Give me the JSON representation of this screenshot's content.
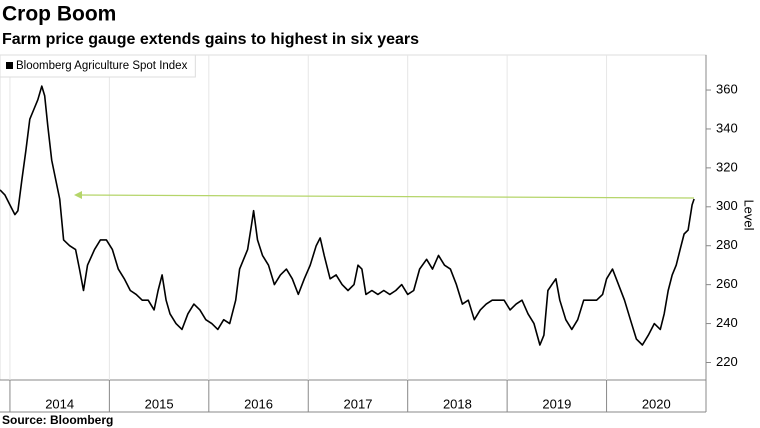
{
  "chart_data": {
    "type": "line",
    "title": "Crop Boom",
    "subtitle": "Farm price gauge extends gains to highest in six years",
    "y_label": "Level",
    "source": "Source: Bloomberg",
    "x": [
      2013.9,
      2013.95,
      2014.0,
      2014.05,
      2014.08,
      2014.12,
      2014.16,
      2014.2,
      2014.24,
      2014.28,
      2014.32,
      2014.35,
      2014.38,
      2014.42,
      2014.46,
      2014.5,
      2014.54,
      2014.6,
      2014.66,
      2014.7,
      2014.74,
      2014.78,
      2014.85,
      2014.91,
      2014.97,
      2015.03,
      2015.09,
      2015.15,
      2015.21,
      2015.27,
      2015.33,
      2015.39,
      2015.45,
      2015.49,
      2015.53,
      2015.57,
      2015.61,
      2015.67,
      2015.73,
      2015.79,
      2015.85,
      2015.91,
      2015.97,
      2016.03,
      2016.09,
      2016.15,
      2016.21,
      2016.27,
      2016.31,
      2016.35,
      2016.39,
      2016.43,
      2016.45,
      2016.49,
      2016.54,
      2016.6,
      2016.66,
      2016.72,
      2016.78,
      2016.84,
      2016.9,
      2016.96,
      2017.02,
      2017.08,
      2017.12,
      2017.16,
      2017.22,
      2017.28,
      2017.34,
      2017.4,
      2017.46,
      2017.5,
      2017.54,
      2017.58,
      2017.64,
      2017.7,
      2017.76,
      2017.82,
      2017.88,
      2017.94,
      2018.0,
      2018.06,
      2018.12,
      2018.19,
      2018.25,
      2018.31,
      2018.37,
      2018.43,
      2018.49,
      2018.55,
      2018.61,
      2018.67,
      2018.73,
      2018.79,
      2018.85,
      2018.91,
      2018.97,
      2019.03,
      2019.09,
      2019.15,
      2019.21,
      2019.27,
      2019.33,
      2019.37,
      2019.41,
      2019.45,
      2019.49,
      2019.53,
      2019.59,
      2019.65,
      2019.71,
      2019.77,
      2019.83,
      2019.9,
      2019.96,
      2020.0,
      2020.06,
      2020.12,
      2020.18,
      2020.24,
      2020.3,
      2020.36,
      2020.42,
      2020.48,
      2020.54,
      2020.58,
      2020.62,
      2020.66,
      2020.7,
      2020.74,
      2020.78,
      2020.82,
      2020.86,
      2020.88
    ],
    "series": [
      {
        "name": "Bloomberg Agriculture Spot Index",
        "color": "#000000",
        "values": [
          308.7,
          306,
          301,
          296,
          298,
          314,
          329,
          345,
          350,
          355,
          362,
          357,
          342,
          324,
          314,
          304,
          283,
          280,
          278,
          268,
          257,
          270,
          278,
          283,
          283,
          278,
          268,
          263,
          257,
          255,
          252,
          252,
          247,
          257,
          265,
          252,
          245,
          240,
          237,
          245,
          250,
          247,
          242,
          240,
          237,
          242,
          240,
          252,
          268,
          273,
          278,
          291,
          298,
          283,
          275,
          270,
          260,
          265,
          268,
          263,
          255,
          263,
          270,
          280,
          284,
          275,
          263,
          265,
          260,
          257,
          260,
          270,
          268,
          255,
          257,
          255,
          257,
          255,
          257,
          260,
          255,
          257,
          268,
          273,
          268,
          275,
          270,
          268,
          260,
          250,
          252,
          242,
          247,
          250,
          252,
          252,
          252,
          247,
          250,
          252,
          245,
          240,
          229,
          234,
          257,
          260,
          263,
          252,
          242,
          237,
          242,
          252,
          252,
          252,
          255,
          263,
          268,
          260,
          252,
          242,
          232,
          229,
          234,
          240,
          237,
          245,
          257,
          265,
          270,
          278,
          286,
          288,
          301,
          304
        ]
      }
    ],
    "xlim": [
      2013.9,
      2021
    ],
    "xticks": [
      2014,
      2015,
      2016,
      2017,
      2018,
      2019,
      2020
    ],
    "ylim": [
      211,
      378
    ],
    "yticks": [
      220,
      240,
      260,
      280,
      300,
      320,
      340,
      360
    ],
    "legend": "top-left"
  }
}
